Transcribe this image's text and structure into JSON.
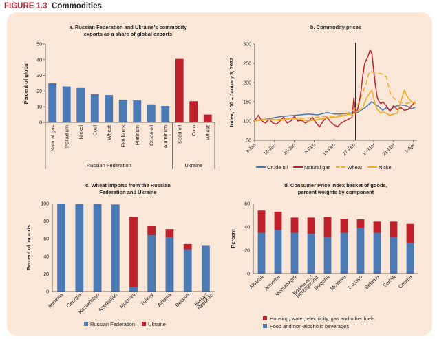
{
  "figure": {
    "label": "FIGURE 1.3",
    "title": "Commodities"
  },
  "colors": {
    "blue": "#4a79b3",
    "red": "#c0202c",
    "orange": "#f2a81e",
    "axis": "#444444",
    "background": "#fbe7d8"
  },
  "chart_data": [
    {
      "id": "a",
      "type": "bar",
      "title_lines": [
        "a. Russian Federation and Ukraine's commodity",
        "exports as a share of global exports"
      ],
      "ylabel": "Percent of global",
      "ylim": [
        0,
        50
      ],
      "yticks": [
        0,
        10,
        20,
        30,
        40,
        50
      ],
      "categories": [
        "Natural gas",
        "Palladium",
        "Nickel",
        "Coal",
        "Wheat",
        "Fertilizers",
        "Platinum",
        "Crude oil",
        "Aluminum",
        "Seed oil",
        "Corn",
        "Wheat"
      ],
      "values": [
        25,
        23,
        22,
        18,
        17.5,
        14.5,
        14,
        11.5,
        10.5,
        40.5,
        13.5,
        5
      ],
      "groups": [
        "Russian Federation",
        "Russian Federation",
        "Russian Federation",
        "Russian Federation",
        "Russian Federation",
        "Russian Federation",
        "Russian Federation",
        "Russian Federation",
        "Russian Federation",
        "Ukraine",
        "Ukraine",
        "Ukraine"
      ],
      "group_labels": [
        "Russian Federation",
        "Ukraine"
      ]
    },
    {
      "id": "b",
      "type": "line",
      "title_lines": [
        "b. Commodity prices"
      ],
      "ylabel": "Index, 100 = January 3, 2022",
      "ylim": [
        50,
        300
      ],
      "yticks": [
        50,
        100,
        150,
        200,
        250,
        300
      ],
      "x_tick_labels": [
        "3-Jan",
        "14-Jan",
        "25-Jan",
        "5-Feb",
        "16-Feb",
        "27-Feb",
        "10-Mar",
        "21-Mar",
        "1-Apr"
      ],
      "x_tick_days": [
        0,
        11,
        22,
        33,
        44,
        55,
        66,
        77,
        88
      ],
      "x_range": [
        0,
        90
      ],
      "event_day": 56,
      "series": [
        {
          "name": "Crude oil",
          "color": "#4a79b3",
          "dash": "",
          "days": [
            0,
            5,
            10,
            15,
            20,
            25,
            30,
            35,
            40,
            45,
            50,
            53,
            55,
            57,
            59,
            61,
            63,
            65,
            67,
            69,
            71,
            73,
            75,
            78,
            81,
            84,
            87,
            89
          ],
          "values": [
            100,
            104,
            108,
            112,
            114,
            116,
            118,
            116,
            122,
            118,
            119,
            120,
            123,
            122,
            128,
            134,
            142,
            150,
            143,
            137,
            128,
            135,
            130,
            138,
            142,
            140,
            132,
            136
          ]
        },
        {
          "name": "Natural gas",
          "color": "#c0202c",
          "dash": "",
          "days": [
            0,
            2,
            4,
            6,
            8,
            10,
            12,
            14,
            16,
            18,
            20,
            22,
            24,
            26,
            28,
            30,
            32,
            34,
            36,
            38,
            40,
            42,
            44,
            46,
            48,
            50,
            52,
            54,
            55,
            56,
            57,
            58,
            59,
            60,
            61,
            62,
            63,
            64,
            65,
            66,
            67,
            68,
            69,
            70,
            71,
            73,
            75,
            77,
            79,
            81,
            83,
            85,
            87,
            89
          ],
          "values": [
            100,
            115,
            100,
            95,
            105,
            95,
            92,
            100,
            110,
            95,
            100,
            112,
            100,
            102,
            95,
            100,
            110,
            95,
            85,
            100,
            110,
            98,
            90,
            85,
            95,
            100,
            105,
            110,
            160,
            120,
            130,
            150,
            180,
            220,
            250,
            260,
            270,
            285,
            275,
            230,
            190,
            160,
            150,
            145,
            150,
            140,
            125,
            140,
            130,
            135,
            128,
            130,
            140,
            150
          ]
        },
        {
          "name": "Wheat",
          "color": "#f2a81e",
          "dash": "7,4",
          "days": [
            0,
            5,
            10,
            15,
            20,
            25,
            30,
            35,
            40,
            45,
            50,
            52,
            54,
            56,
            58,
            60,
            62,
            63,
            64,
            65,
            66,
            67,
            69,
            71,
            73,
            75,
            77,
            79,
            81,
            83,
            85,
            87,
            89
          ],
          "values": [
            100,
            103,
            105,
            104,
            106,
            107,
            108,
            110,
            112,
            113,
            118,
            122,
            126,
            135,
            150,
            175,
            200,
            220,
            230,
            228,
            226,
            225,
            224,
            222,
            215,
            175,
            160,
            152,
            148,
            146,
            146,
            150,
            147
          ]
        },
        {
          "name": "Nickel",
          "color": "#f2a81e",
          "dash": "",
          "days": [
            0,
            5,
            10,
            15,
            20,
            25,
            30,
            35,
            40,
            45,
            50,
            52,
            54,
            56,
            58,
            60,
            62,
            64,
            65,
            66,
            67,
            68,
            69,
            70,
            71,
            73,
            75,
            77,
            79,
            81,
            83,
            85,
            87,
            89
          ],
          "values": [
            100,
            105,
            104,
            102,
            108,
            104,
            100,
            104,
            108,
            110,
            115,
            118,
            116,
            122,
            130,
            135,
            160,
            175,
            180,
            160,
            140,
            130,
            125,
            120,
            125,
            120,
            115,
            118,
            120,
            150,
            180,
            160,
            150,
            145
          ]
        }
      ]
    },
    {
      "id": "c",
      "type": "bar",
      "title_lines": [
        "c. Wheat imports from the Russian",
        "Federation and Ukraine"
      ],
      "ylabel": "Percent of imports",
      "ylim": [
        0,
        100
      ],
      "yticks": [
        0,
        20,
        40,
        60,
        80,
        100
      ],
      "categories": [
        "Armenia",
        "Georgia",
        "Kazakhstan",
        "Azerbaijan",
        "Moldova",
        "Turkey",
        "Albania",
        "Belarus",
        "Kyrgyz Republic"
      ],
      "series": [
        {
          "name": "Russian Federation",
          "color": "#4a79b3",
          "values": [
            100,
            99.5,
            99.5,
            99,
            5,
            64,
            62,
            48,
            52
          ]
        },
        {
          "name": "Ukraine",
          "color": "#c0202c",
          "values": [
            0,
            0,
            0,
            0,
            80,
            11,
            9,
            6,
            0
          ]
        }
      ]
    },
    {
      "id": "d",
      "type": "bar",
      "title_lines": [
        "d. Consumer Price Index basket of goods,",
        "percent weights by component"
      ],
      "ylabel": "Percent",
      "ylim": [
        0,
        60
      ],
      "yticks": [
        0,
        20,
        40,
        60
      ],
      "categories": [
        "Albania",
        "Armenia",
        "Montenegro",
        "Bosnia and Herzegovina",
        "Bulgaria",
        "Moldova",
        "Kosovo",
        "Belarus",
        "Serbia",
        "Croatia"
      ],
      "series": [
        {
          "name": "Food and non-alcoholic beverages",
          "color": "#4a79b3",
          "values": [
            35,
            37.5,
            35,
            34,
            31.5,
            35,
            39,
            35,
            31.5,
            26.5
          ]
        },
        {
          "name": "Housing, water, electricity, gas and other fuels",
          "color": "#c0202c",
          "values": [
            19,
            15.5,
            13,
            14,
            17,
            12,
            7.5,
            9.5,
            13,
            16
          ]
        }
      ]
    }
  ]
}
